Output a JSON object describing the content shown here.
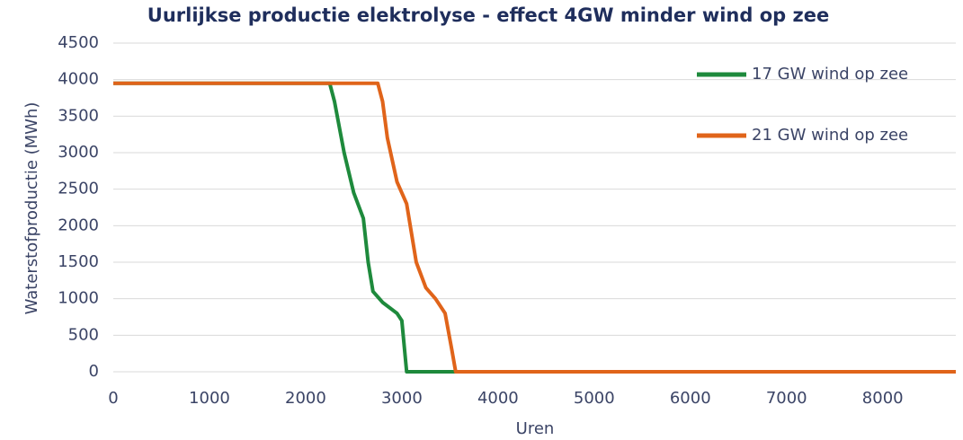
{
  "chart_data": {
    "type": "line",
    "title": "Uurlijkse productie elektrolyse - effect 4GW minder wind op zee",
    "x_label": "Uren",
    "y_label": "Waterstofproductie (MWh)",
    "xlim": [
      0,
      8760
    ],
    "xticks": [
      0,
      1000,
      2000,
      3000,
      4000,
      5000,
      6000,
      7000,
      8000
    ],
    "ylim": [
      0,
      4500
    ],
    "yticks": [
      0,
      500,
      1000,
      1500,
      2000,
      2500,
      3000,
      3500,
      4000,
      4500
    ],
    "grid": true,
    "legend": "upper right",
    "series": [
      {
        "name": "17 GW wind op zee",
        "color": "#1e8a3c",
        "x": [
          0,
          2250,
          2300,
          2400,
          2500,
          2600,
          2650,
          2700,
          2800,
          2950,
          3000,
          3050,
          8760
        ],
        "values": [
          3950,
          3950,
          3700,
          3000,
          2450,
          2100,
          1500,
          1100,
          950,
          800,
          700,
          0,
          0
        ]
      },
      {
        "name": "21 GW wind op zee",
        "color": "#e0641a",
        "x": [
          0,
          2750,
          2800,
          2850,
          2950,
          3050,
          3150,
          3250,
          3350,
          3450,
          3520,
          3560,
          8760
        ],
        "values": [
          3950,
          3950,
          3700,
          3200,
          2600,
          2300,
          1500,
          1150,
          1000,
          800,
          300,
          0,
          0
        ]
      }
    ]
  }
}
